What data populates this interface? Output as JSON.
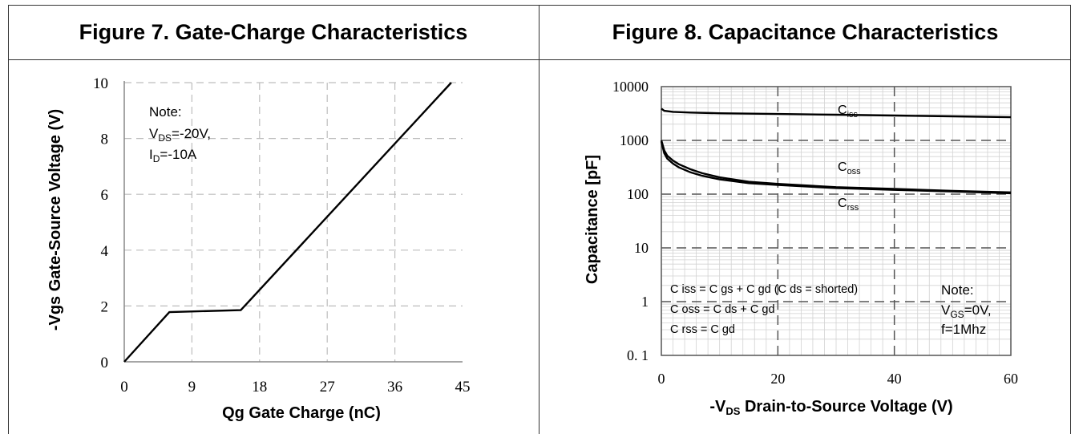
{
  "chart_data": [
    {
      "type": "line",
      "title": "Figure 7. Gate-Charge Characteristics",
      "xlabel": "Qg Gate Charge (nC)",
      "ylabel": "-Vgs Gate-Source Voltage (V)",
      "xlim": [
        0,
        45
      ],
      "ylim": [
        0,
        10
      ],
      "xticks": [
        0,
        9,
        18,
        27,
        36,
        45
      ],
      "yticks": [
        0,
        2,
        4,
        6,
        8,
        10
      ],
      "grid": true,
      "note": {
        "title": "Note:",
        "line1": {
          "sym": "V",
          "sub": "DS",
          "val": "=-20V,"
        },
        "line2": {
          "sym": "I",
          "sub": "D",
          "val": "=-10A"
        }
      },
      "series": [
        {
          "x": [
            0,
            6,
            15.5,
            43.5
          ],
          "y": [
            0,
            1.78,
            1.85,
            10
          ]
        }
      ]
    },
    {
      "type": "line",
      "title": "Figure 8. Capacitance Characteristics",
      "xlabel": {
        "prefix": "-V",
        "sub": "DS",
        "rest": " Drain-to-Source Voltage (V)"
      },
      "ylabel": "Capacitance [pF]",
      "xlim": [
        0,
        60
      ],
      "ylim": [
        0.1,
        10000
      ],
      "yscale": "log",
      "xticks": [
        0,
        20,
        40,
        60
      ],
      "yticks": [
        {
          "value": 10000,
          "label": "10000"
        },
        {
          "value": 1000,
          "label": "1000"
        },
        {
          "value": 100,
          "label": "100"
        },
        {
          "value": 10,
          "label": "10"
        },
        {
          "value": 1,
          "label": "1"
        },
        {
          "value": 0.1,
          "label": "0. 1"
        }
      ],
      "grid": true,
      "formulas": [
        "C iss = C gs + C gd (C ds = shorted)",
        "C oss = C ds + C gd",
        "C rss = C gd"
      ],
      "note": {
        "title": "Note:",
        "line1": {
          "sym": "V",
          "sub": "GS",
          "val": "=0V,"
        },
        "line2": "f=1Mhz"
      },
      "series": [
        {
          "label_sym": "C",
          "label_sub": "iss",
          "x": [
            0,
            0.5,
            2,
            5,
            10,
            20,
            30,
            40,
            50,
            60
          ],
          "y": [
            3900,
            3550,
            3400,
            3300,
            3200,
            3100,
            3000,
            2900,
            2800,
            2700
          ]
        },
        {
          "label_sym": "C",
          "label_sub": "oss",
          "x": [
            0,
            0.5,
            1,
            2,
            3,
            5,
            7,
            10,
            15,
            20,
            30,
            40,
            50,
            60
          ],
          "y": [
            1000,
            650,
            520,
            420,
            360,
            290,
            245,
            205,
            170,
            155,
            135,
            125,
            115,
            108
          ]
        },
        {
          "label_sym": "C",
          "label_sub": "rss",
          "x": [
            0,
            0.5,
            1,
            2,
            3,
            5,
            7,
            10,
            15,
            20,
            30,
            40,
            50,
            60
          ],
          "y": [
            950,
            580,
            460,
            370,
            315,
            255,
            220,
            188,
            160,
            148,
            130,
            120,
            112,
            104
          ]
        }
      ]
    }
  ]
}
